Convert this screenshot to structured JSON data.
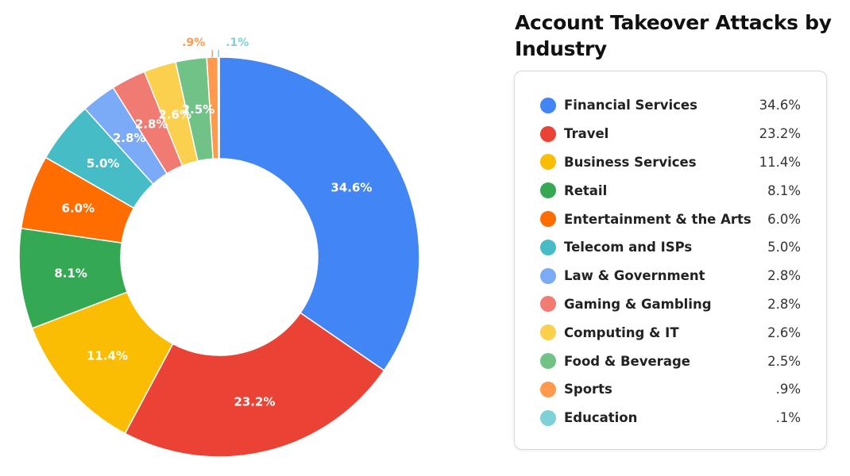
{
  "chart_data": {
    "type": "pie",
    "title": "Account Takeover Attacks by Industry",
    "legend_position": "right",
    "inner_hole": true,
    "slices": [
      {
        "name": "Financial Services",
        "value": 34.6,
        "label": "34.6%",
        "color": "#4285F4"
      },
      {
        "name": "Travel",
        "value": 23.2,
        "label": "23.2%",
        "color": "#EA4335"
      },
      {
        "name": "Business Services",
        "value": 11.4,
        "label": "11.4%",
        "color": "#FBBC04"
      },
      {
        "name": "Retail",
        "value": 8.1,
        "label": "8.1%",
        "color": "#34A853"
      },
      {
        "name": "Entertainment & the Arts",
        "value": 6.0,
        "label": "6.0%",
        "color": "#FF6D01"
      },
      {
        "name": "Telecom and ISPs",
        "value": 5.0,
        "label": "5.0%",
        "color": "#46BDC6"
      },
      {
        "name": "Law & Government",
        "value": 2.8,
        "label": "2.8%",
        "color": "#7BAAF7"
      },
      {
        "name": "Gaming & Gambling",
        "value": 2.8,
        "label": "2.8%",
        "color": "#F07B72"
      },
      {
        "name": "Computing & IT",
        "value": 2.6,
        "label": "2.6%",
        "color": "#FCD04F"
      },
      {
        "name": "Food & Beverage",
        "value": 2.5,
        "label": "2.5%",
        "color": "#71C287"
      },
      {
        "name": "Sports",
        "value": 0.9,
        "label": ".9%",
        "color": "#FF994D"
      },
      {
        "name": "Education",
        "value": 0.1,
        "label": ".1%",
        "color": "#7ED1D7"
      }
    ]
  }
}
